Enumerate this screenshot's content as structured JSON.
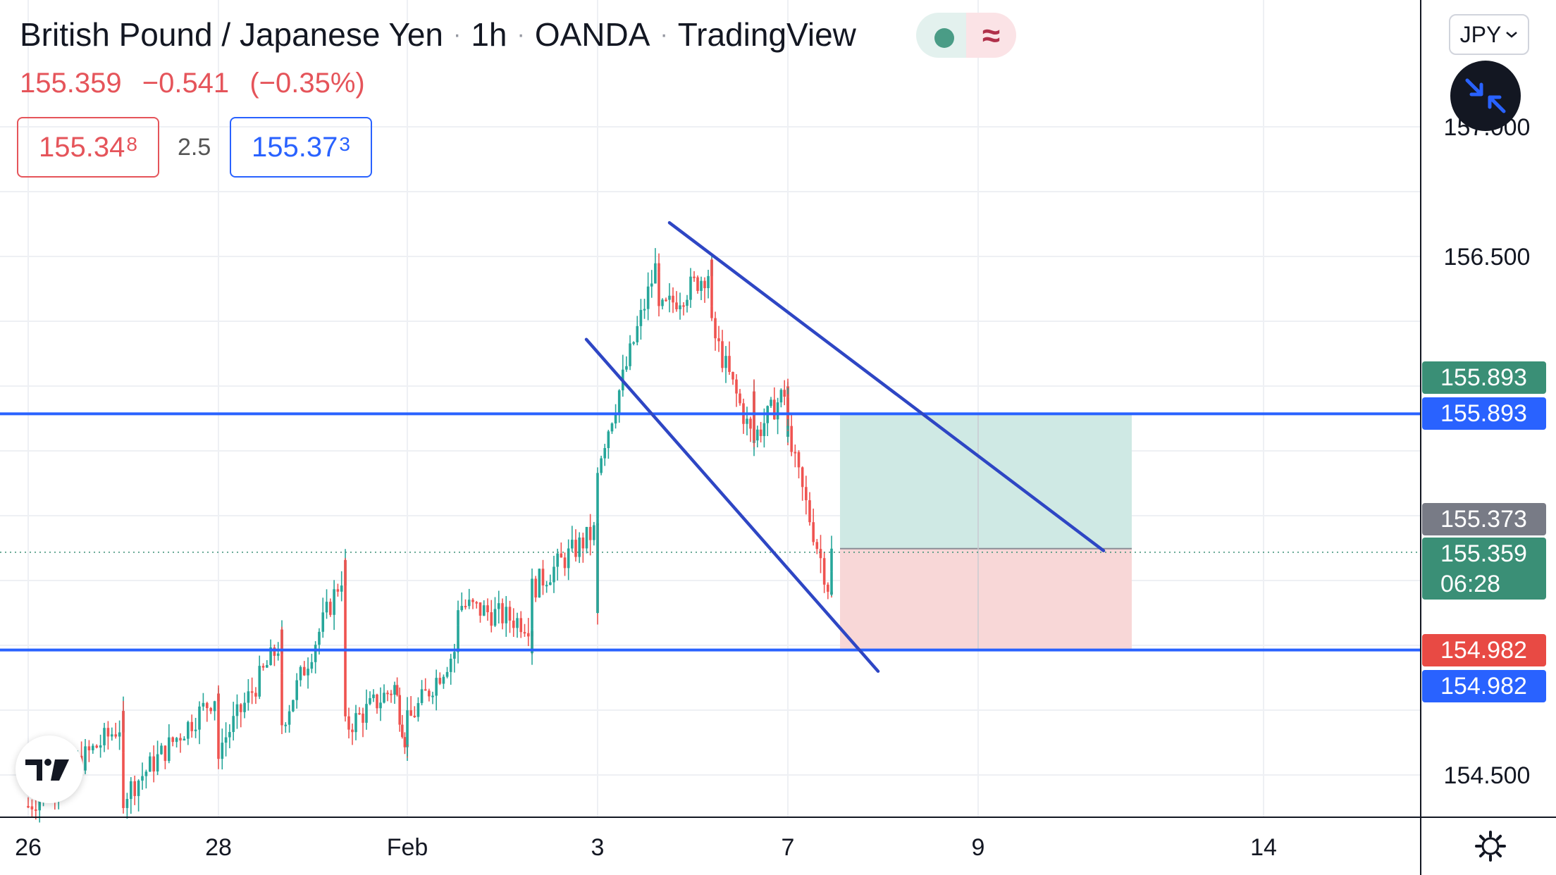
{
  "header": {
    "symbol": "British Pound / Japanese Yen",
    "interval": "1h",
    "broker": "OANDA",
    "platform": "TradingView",
    "last": "155.359",
    "change": "−0.541",
    "change_pct": "(−0.35%)"
  },
  "trade_panel": {
    "sell_price": "155.34",
    "sell_sup": "8",
    "spread": "2.5",
    "buy_price": "155.37",
    "buy_sup": "3"
  },
  "controls": {
    "currency": "JPY"
  },
  "colors": {
    "up": "#26a69a",
    "down": "#ef5350",
    "line": "#2e46c4",
    "profit": "#cfe9e4",
    "loss": "#f8d7d7",
    "label_gray": "#787b86",
    "label_blue": "#2962ff",
    "label_red": "#e84a44",
    "label_green": "#3a8f76"
  },
  "chart_data": {
    "type": "candlestick",
    "interval": "1h",
    "x_tick_labels": [
      "26",
      "28",
      "Feb",
      "3",
      "7",
      "9",
      "14"
    ],
    "y_tick_labels": [
      "157.000",
      "156.500",
      "154.500"
    ],
    "ylim": [
      154.35,
      157.35
    ],
    "price_labels": [
      {
        "value": "155.893",
        "style": "green",
        "price": 155.893
      },
      {
        "value": "155.893",
        "style": "blue",
        "price": 155.893
      },
      {
        "value": "155.373",
        "style": "gray",
        "price": 155.373
      },
      {
        "value": "155.359",
        "style": "green",
        "price": 155.359,
        "countdown": "06:28"
      },
      {
        "value": "154.982",
        "style": "red",
        "price": 154.982
      },
      {
        "value": "154.982",
        "style": "blue",
        "price": 154.982
      }
    ],
    "horizontal_lines": [
      155.893,
      154.982
    ],
    "last_price": 155.359,
    "position": {
      "entry": 155.373,
      "target": 155.893,
      "stop": 154.982
    },
    "trend_channel": {
      "upper": {
        "from": {
          "x": "Feb 4",
          "y": 156.63
        },
        "to": {
          "x": "Feb 10",
          "y": 155.365
        }
      },
      "lower": {
        "from": {
          "x": "Feb 3",
          "y": 156.18
        },
        "to": {
          "x": "Feb 8",
          "y": 154.9
        }
      }
    },
    "path": [
      {
        "x": "26",
        "y": 154.38
      },
      {
        "x": "27",
        "y": 154.7
      },
      {
        "x": "27",
        "y": 154.42
      },
      {
        "x": "28",
        "y": 154.82
      },
      {
        "x": "28",
        "y": 154.6
      },
      {
        "x": "29",
        "y": 155.02
      },
      {
        "x": "29",
        "y": 154.7
      },
      {
        "x": "30",
        "y": 155.3
      },
      {
        "x": "30",
        "y": 154.68
      },
      {
        "x": "31",
        "y": 154.84
      },
      {
        "x": "Feb",
        "y": 154.6
      },
      {
        "x": "Feb",
        "y": 154.7
      },
      {
        "x": "1",
        "y": 155.0
      },
      {
        "x": "1",
        "y": 155.16
      },
      {
        "x": "2",
        "y": 155.08
      },
      {
        "x": "2",
        "y": 154.98
      },
      {
        "x": "2",
        "y": 155.22
      },
      {
        "x": "3",
        "y": 155.45
      },
      {
        "x": "3",
        "y": 155.1
      },
      {
        "x": "3",
        "y": 155.28
      },
      {
        "x": "3",
        "y": 155.7
      },
      {
        "x": "4",
        "y": 156.5
      },
      {
        "x": "4",
        "y": 156.28
      },
      {
        "x": "5",
        "y": 156.45
      },
      {
        "x": "5",
        "y": 156.38
      },
      {
        "x": "5",
        "y": 156.22
      },
      {
        "x": "6",
        "y": 155.78
      },
      {
        "x": "6",
        "y": 156.0
      },
      {
        "x": "6",
        "y": 155.8
      },
      {
        "x": "7",
        "y": 156.0
      },
      {
        "x": "7",
        "y": 155.8
      },
      {
        "x": "7",
        "y": 155.98
      },
      {
        "x": "7",
        "y": 155.8
      },
      {
        "x": "8",
        "y": 155.18
      },
      {
        "x": "8",
        "y": 155.36
      }
    ]
  }
}
